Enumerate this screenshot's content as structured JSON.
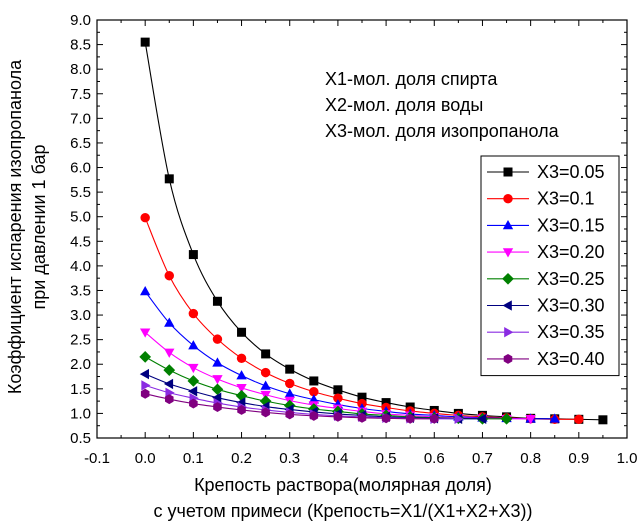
{
  "chart_data": {
    "type": "line",
    "xlabel_lines": [
      "Крепость раствора(молярная доля)",
      "с учетом примеси (Крепость=X1/(X1+X2+X3))"
    ],
    "ylabel_lines": [
      "Коэффициент испарения изопропанола",
      "при давлении 1 бар"
    ],
    "xlim": [
      -0.1,
      1.0
    ],
    "ylim": [
      0.5,
      9.0
    ],
    "xticks": [
      -0.1,
      0.0,
      0.1,
      0.2,
      0.3,
      0.4,
      0.5,
      0.6,
      0.7,
      0.8,
      0.9,
      1.0
    ],
    "yticks": [
      0.5,
      1.0,
      1.5,
      2.0,
      2.5,
      3.0,
      3.5,
      4.0,
      4.5,
      5.0,
      5.5,
      6.0,
      6.5,
      7.0,
      7.5,
      8.0,
      8.5,
      9.0
    ],
    "xtick_labels": [
      "-0.1",
      "0.0",
      "0.1",
      "0.2",
      "0.3",
      "0.4",
      "0.5",
      "0.6",
      "0.7",
      "0.8",
      "0.9",
      "1.0"
    ],
    "ytick_labels": [
      "0.5",
      "1.0",
      "1.5",
      "2.0",
      "2.5",
      "3.0",
      "3.5",
      "4.0",
      "4.5",
      "5.0",
      "5.5",
      "6.0",
      "6.5",
      "7.0",
      "7.5",
      "8.0",
      "8.5",
      "9.0"
    ],
    "grid": false,
    "legend_position": "right",
    "annotation_lines": [
      "X1-мол. доля спирта",
      "X2-мол. доля воды",
      "X3-мол. доля изопропанола"
    ],
    "series": [
      {
        "name": "X3=0.05",
        "color": "#000000",
        "marker": "square",
        "x": [
          0.0,
          0.05,
          0.1,
          0.15,
          0.2,
          0.25,
          0.3,
          0.35,
          0.4,
          0.45,
          0.5,
          0.55,
          0.6,
          0.65,
          0.7,
          0.75,
          0.8,
          0.85,
          0.9,
          0.95
        ],
        "y": [
          8.55,
          5.77,
          4.23,
          3.28,
          2.65,
          2.21,
          1.9,
          1.66,
          1.48,
          1.33,
          1.22,
          1.13,
          1.06,
          1.0,
          0.96,
          0.93,
          0.9,
          0.89,
          0.88,
          0.87
        ]
      },
      {
        "name": "X3=0.1",
        "color": "#ff0000",
        "marker": "circle",
        "x": [
          0.0,
          0.05,
          0.1,
          0.15,
          0.2,
          0.25,
          0.3,
          0.35,
          0.4,
          0.45,
          0.5,
          0.55,
          0.6,
          0.65,
          0.7,
          0.75,
          0.8,
          0.85,
          0.9
        ],
        "y": [
          4.98,
          3.8,
          3.03,
          2.51,
          2.12,
          1.83,
          1.61,
          1.44,
          1.31,
          1.2,
          1.12,
          1.05,
          1.0,
          0.96,
          0.93,
          0.91,
          0.89,
          0.88,
          0.88
        ]
      },
      {
        "name": "X3=0.15",
        "color": "#0000ff",
        "marker": "triangle-up",
        "x": [
          0.0,
          0.05,
          0.1,
          0.15,
          0.2,
          0.25,
          0.3,
          0.35,
          0.4,
          0.45,
          0.5,
          0.55,
          0.6,
          0.65,
          0.7,
          0.75,
          0.8,
          0.85
        ],
        "y": [
          3.48,
          2.84,
          2.38,
          2.03,
          1.77,
          1.56,
          1.4,
          1.28,
          1.18,
          1.1,
          1.04,
          0.99,
          0.96,
          0.93,
          0.91,
          0.9,
          0.89,
          0.89
        ]
      },
      {
        "name": "X3=0.20",
        "color": "#ff00ff",
        "marker": "triangle-down",
        "x": [
          0.0,
          0.05,
          0.1,
          0.15,
          0.2,
          0.25,
          0.3,
          0.35,
          0.4,
          0.45,
          0.5,
          0.55,
          0.6,
          0.65,
          0.7,
          0.75,
          0.8
        ],
        "y": [
          2.65,
          2.24,
          1.93,
          1.7,
          1.52,
          1.38,
          1.26,
          1.17,
          1.1,
          1.04,
          0.99,
          0.96,
          0.93,
          0.91,
          0.9,
          0.89,
          0.89
        ]
      },
      {
        "name": "X3=0.25",
        "color": "#008000",
        "marker": "diamond",
        "x": [
          0.0,
          0.05,
          0.1,
          0.15,
          0.2,
          0.25,
          0.3,
          0.35,
          0.4,
          0.45,
          0.5,
          0.55,
          0.6,
          0.65,
          0.7,
          0.75
        ],
        "y": [
          2.15,
          1.88,
          1.66,
          1.49,
          1.36,
          1.25,
          1.16,
          1.09,
          1.04,
          0.99,
          0.96,
          0.93,
          0.91,
          0.9,
          0.89,
          0.89
        ]
      },
      {
        "name": "X3=0.30",
        "color": "#000080",
        "marker": "triangle-left",
        "x": [
          0.0,
          0.05,
          0.1,
          0.15,
          0.2,
          0.25,
          0.3,
          0.35,
          0.4,
          0.45,
          0.5,
          0.55,
          0.6,
          0.65,
          0.7
        ],
        "y": [
          1.8,
          1.6,
          1.45,
          1.32,
          1.22,
          1.14,
          1.08,
          1.03,
          0.99,
          0.96,
          0.93,
          0.91,
          0.9,
          0.89,
          0.89
        ]
      },
      {
        "name": "X3=0.35",
        "color": "#8a2be2",
        "marker": "triangle-right",
        "x": [
          0.0,
          0.05,
          0.1,
          0.15,
          0.2,
          0.25,
          0.3,
          0.35,
          0.4,
          0.45,
          0.5,
          0.55,
          0.6,
          0.65
        ],
        "y": [
          1.57,
          1.42,
          1.31,
          1.21,
          1.13,
          1.07,
          1.02,
          0.98,
          0.95,
          0.93,
          0.91,
          0.9,
          0.89,
          0.89
        ]
      },
      {
        "name": "X3=0.40",
        "color": "#800080",
        "marker": "hexagon",
        "x": [
          0.0,
          0.05,
          0.1,
          0.15,
          0.2,
          0.25,
          0.3,
          0.35,
          0.4,
          0.45,
          0.5,
          0.55,
          0.6
        ],
        "y": [
          1.4,
          1.29,
          1.2,
          1.13,
          1.07,
          1.02,
          0.98,
          0.95,
          0.93,
          0.91,
          0.9,
          0.89,
          0.89
        ]
      }
    ]
  }
}
